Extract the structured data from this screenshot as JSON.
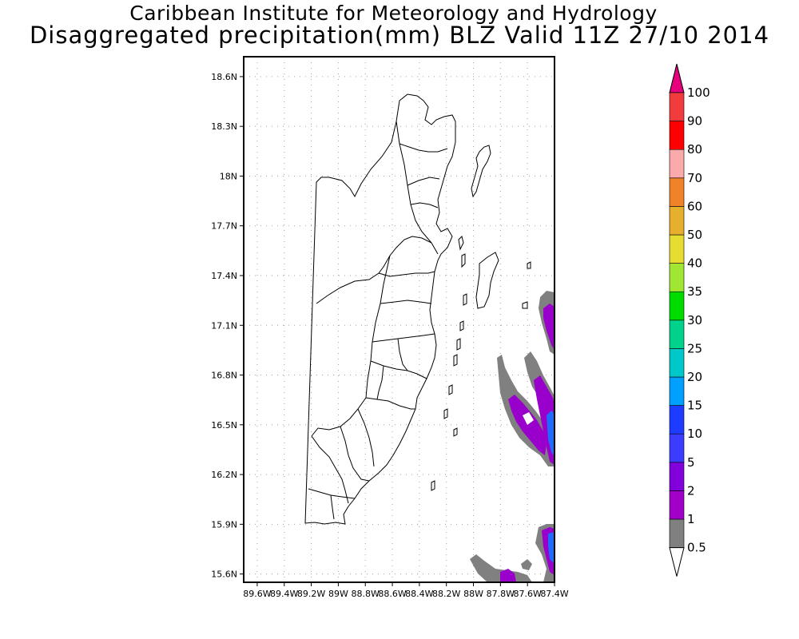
{
  "header": {
    "title_line1": "Caribbean Institute for Meteorology and Hydrology",
    "title_line2": "Disaggregated precipitation(mm) BLZ Valid 11Z 27/10 2014"
  },
  "map": {
    "lat_labels": [
      "18.6N",
      "18.3N",
      "18N",
      "17.7N",
      "17.4N",
      "17.1N",
      "16.8N",
      "16.5N",
      "16.2N",
      "15.9N",
      "15.6N"
    ],
    "lon_labels": [
      "89.6W",
      "89.4W",
      "89.2W",
      "89W",
      "88.8W",
      "88.6W",
      "88.4W",
      "88.2W",
      "88W",
      "87.8W",
      "87.6W",
      "87.4W"
    ],
    "lat_range": [
      15.55,
      18.72
    ],
    "lon_range": [
      -89.7,
      -87.4
    ],
    "grid": true,
    "land_outline_color": "#000000"
  },
  "colorbar": {
    "levels": [
      "0.5",
      "1",
      "2",
      "5",
      "10",
      "15",
      "20",
      "25",
      "30",
      "35",
      "40",
      "50",
      "60",
      "70",
      "80",
      "90",
      "100"
    ],
    "colors": [
      "#808080",
      "#a000c8",
      "#8200dc",
      "#3c3cff",
      "#1e3cff",
      "#00a0ff",
      "#00c8c8",
      "#00d28c",
      "#00dc00",
      "#a0e632",
      "#e6dc32",
      "#e6af2d",
      "#f08228",
      "#faaaaa",
      "#ff0000",
      "#f03c3c",
      "#e6007d"
    ],
    "extends": "both"
  },
  "precip_colors": {
    "light": "#808080",
    "moderate": "#9a00cc",
    "heavy": "#1e6cff"
  }
}
